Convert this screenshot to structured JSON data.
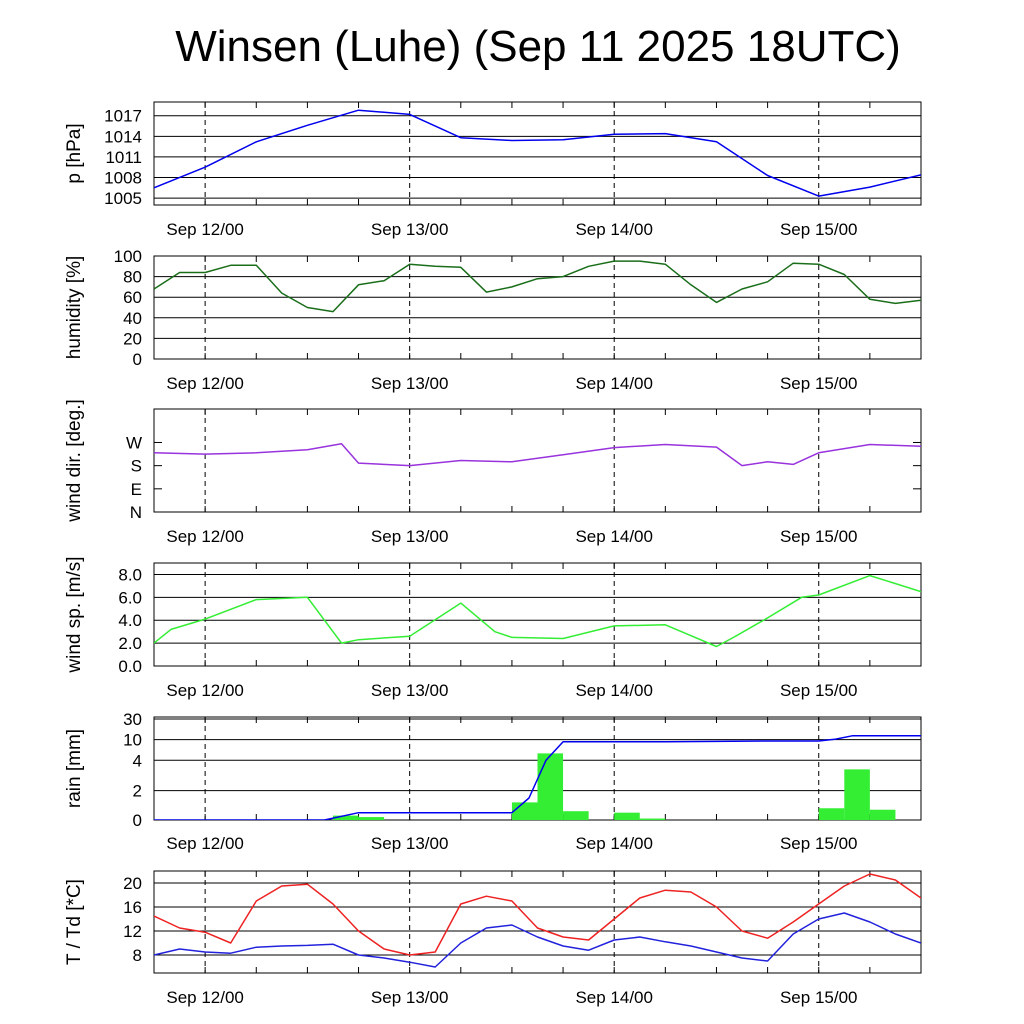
{
  "title": "Winsen (Luhe) (Sep 11 2025 18UTC)",
  "chart_data": [
    {
      "id": "pressure",
      "type": "line",
      "ylabel": "p [hPa]",
      "ylim": [
        1004,
        1019
      ],
      "yticks": [
        "1005",
        "1008",
        "1011",
        "1014",
        "1017"
      ],
      "x_ticks": [
        "Sep 12/00",
        "Sep 13/00",
        "Sep 14/00",
        "Sep 15/00"
      ],
      "x_hours_since_start": [
        0,
        6,
        12,
        18,
        24,
        30,
        36,
        42,
        48,
        54,
        60,
        66,
        72,
        78,
        84,
        90
      ],
      "series": [
        {
          "color": "#0000ee",
          "values": [
            1006.5,
            1009.5,
            1013.2,
            1015.6,
            1017.8,
            1017.2,
            1013.8,
            1013.4,
            1013.5,
            1014.3,
            1014.4,
            1013.2,
            1008.3,
            1005.3,
            1006.6,
            1008.4
          ]
        }
      ]
    },
    {
      "id": "humidity",
      "type": "line",
      "ylabel": "humidity [%]",
      "ylim": [
        0,
        100
      ],
      "yticks": [
        "0",
        "20",
        "40",
        "60",
        "80",
        "100"
      ],
      "x_ticks": [
        "Sep 12/00",
        "Sep 13/00",
        "Sep 14/00",
        "Sep 15/00"
      ],
      "x_hours_since_start": [
        0,
        3,
        6,
        9,
        12,
        15,
        18,
        21,
        24,
        27,
        30,
        33,
        36,
        39,
        42,
        45,
        48,
        51,
        54,
        57,
        60,
        63,
        66,
        69,
        72,
        75,
        78,
        81,
        84,
        87,
        90
      ],
      "series": [
        {
          "color": "#1a6e1a",
          "values": [
            68,
            84,
            84,
            91,
            91,
            64,
            50,
            46,
            72,
            76,
            92,
            90,
            89,
            65,
            70,
            78,
            80,
            90,
            95,
            95,
            92,
            72,
            55,
            68,
            75,
            93,
            92,
            82,
            58,
            54,
            57
          ]
        }
      ]
    },
    {
      "id": "wind_dir",
      "type": "line",
      "ylabel": "wind dir. [deg.]",
      "ylim": [
        0,
        400
      ],
      "yticks": [
        "N",
        "E",
        "S",
        "W"
      ],
      "x_ticks": [
        "Sep 12/00",
        "Sep 13/00",
        "Sep 14/00",
        "Sep 15/00"
      ],
      "x_hours_since_start": [
        0,
        6,
        12,
        18,
        22,
        24,
        30,
        36,
        42,
        48,
        54,
        60,
        66,
        69,
        72,
        75,
        78,
        84,
        90
      ],
      "series": [
        {
          "color": "#9933dd",
          "values": [
            230,
            225,
            230,
            242,
            265,
            190,
            180,
            200,
            195,
            222,
            250,
            262,
            252,
            180,
            195,
            185,
            230,
            262,
            255
          ]
        }
      ]
    },
    {
      "id": "wind_speed",
      "type": "line",
      "ylabel": "wind sp. [m/s]",
      "ylim": [
        0,
        9
      ],
      "yticks": [
        "0.0",
        "2.0",
        "4.0",
        "6.0",
        "8.0"
      ],
      "x_ticks": [
        "Sep 12/00",
        "Sep 13/00",
        "Sep 14/00",
        "Sep 15/00"
      ],
      "x_hours_since_start": [
        0,
        2,
        6,
        12,
        18,
        22,
        24,
        30,
        36,
        40,
        42,
        48,
        54,
        60,
        66,
        68,
        72,
        76,
        78,
        84,
        90
      ],
      "series": [
        {
          "color": "#33ee33",
          "values": [
            2.0,
            3.2,
            4.1,
            5.8,
            6.0,
            2.0,
            2.3,
            2.6,
            5.5,
            3.0,
            2.5,
            2.4,
            3.5,
            3.6,
            1.7,
            2.5,
            4.2,
            6.0,
            6.2,
            7.9,
            6.5
          ]
        }
      ]
    },
    {
      "id": "rain",
      "type": "bar",
      "ylabel": "rain [mm]",
      "ylim": [
        0,
        30
      ],
      "yticks": [
        "0",
        "2",
        "4",
        "10",
        "30"
      ],
      "x_ticks": [
        "Sep 12/00",
        "Sep 13/00",
        "Sep 14/00",
        "Sep 15/00"
      ],
      "bars": {
        "color": "#33ee33",
        "hours_since_start": [
          21,
          24,
          42,
          45,
          48,
          54,
          57,
          78,
          81,
          84
        ],
        "values": [
          0.3,
          0.2,
          1.2,
          6.0,
          0.6,
          0.5,
          0.1,
          0.8,
          3.4,
          0.7
        ]
      },
      "series": [
        {
          "name": "cumulative",
          "color": "#0000ee",
          "x_hours_since_start": [
            0,
            20,
            24,
            30,
            42,
            44,
            46,
            48,
            54,
            60,
            66,
            72,
            78,
            80,
            82,
            90
          ],
          "values": [
            0,
            0,
            0.5,
            0.5,
            0.5,
            1.5,
            4.0,
            9.4,
            9.4,
            9.4,
            9.5,
            9.6,
            9.6,
            10.5,
            13.8,
            13.8
          ]
        }
      ]
    },
    {
      "id": "temperature",
      "type": "line",
      "ylabel": "T / Td [*C]",
      "ylim": [
        5,
        22
      ],
      "yticks": [
        "8",
        "12",
        "16",
        "20"
      ],
      "x_ticks": [
        "Sep 12/00",
        "Sep 13/00",
        "Sep 14/00",
        "Sep 15/00"
      ],
      "x_hours_since_start": [
        0,
        3,
        6,
        9,
        12,
        15,
        18,
        21,
        24,
        27,
        30,
        33,
        36,
        39,
        42,
        45,
        48,
        51,
        54,
        57,
        60,
        63,
        66,
        69,
        72,
        75,
        78,
        81,
        84,
        87,
        90
      ],
      "series": [
        {
          "name": "T",
          "color": "#ee2222",
          "values": [
            14.5,
            12.5,
            11.8,
            10.0,
            17.0,
            19.5,
            19.8,
            16.5,
            12.0,
            9.0,
            8.0,
            8.5,
            16.5,
            17.8,
            17.0,
            12.5,
            11.0,
            10.5,
            14.0,
            17.5,
            18.8,
            18.5,
            16.0,
            12.0,
            10.8,
            13.5,
            16.5,
            19.5,
            21.5,
            20.5,
            17.5
          ]
        },
        {
          "name": "Td",
          "color": "#2222dd",
          "values": [
            8.0,
            9.0,
            8.5,
            8.3,
            9.3,
            9.5,
            9.6,
            9.8,
            8.0,
            7.5,
            6.8,
            6.0,
            10.0,
            12.5,
            13.0,
            11.0,
            9.5,
            8.8,
            10.5,
            11.0,
            10.2,
            9.5,
            8.5,
            7.5,
            7.0,
            11.5,
            14.0,
            15.0,
            13.5,
            11.5,
            10.0
          ]
        }
      ]
    }
  ]
}
